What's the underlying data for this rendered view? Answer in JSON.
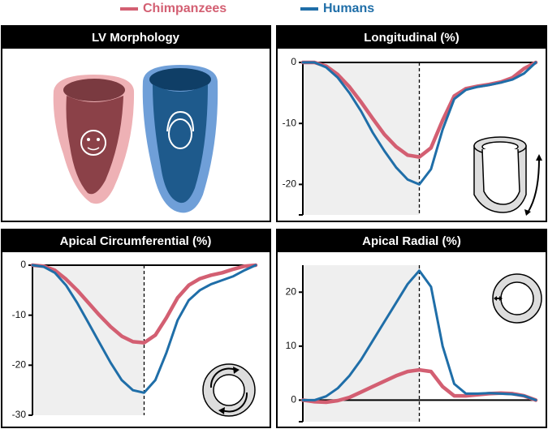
{
  "chart_data": [
    {
      "type": "image",
      "title": "LV Morphology"
    },
    {
      "type": "line",
      "title": "Longitudinal (%)",
      "x": [
        0,
        0.05,
        0.1,
        0.15,
        0.2,
        0.25,
        0.3,
        0.35,
        0.4,
        0.45,
        0.5,
        0.55,
        0.6,
        0.65,
        0.7,
        0.75,
        0.8,
        0.85,
        0.9,
        0.95,
        1
      ],
      "xlim": [
        0,
        1
      ],
      "ylim": [
        -25,
        0
      ],
      "yticks": [
        0,
        -10,
        -20
      ],
      "vline": 0.5,
      "series": [
        {
          "name": "Chimpanzees",
          "color": "#d35f72",
          "values": [
            0,
            0,
            -0.6,
            -2,
            -4,
            -6.5,
            -9.2,
            -11.8,
            -13.8,
            -15.2,
            -15.5,
            -14,
            -9.5,
            -5.5,
            -4.3,
            -3.9,
            -3.6,
            -3.2,
            -2.5,
            -1,
            0
          ]
        },
        {
          "name": "Humans",
          "color": "#1f6ea8",
          "values": [
            0,
            0,
            -0.8,
            -2.5,
            -5,
            -8,
            -11.5,
            -14.5,
            -17.2,
            -19.2,
            -20,
            -17.5,
            -11,
            -6,
            -4.5,
            -4,
            -3.7,
            -3.3,
            -2.8,
            -1.8,
            0
          ]
        }
      ]
    },
    {
      "type": "line",
      "title": "Apical Circumferential (%)",
      "x": [
        0,
        0.05,
        0.1,
        0.15,
        0.2,
        0.25,
        0.3,
        0.35,
        0.4,
        0.45,
        0.5,
        0.55,
        0.6,
        0.65,
        0.7,
        0.75,
        0.8,
        0.85,
        0.9,
        0.95,
        1
      ],
      "xlim": [
        0,
        1
      ],
      "ylim": [
        -30,
        0
      ],
      "yticks": [
        0,
        -10,
        -20,
        -30
      ],
      "vline": 0.5,
      "series": [
        {
          "name": "Chimpanzees",
          "color": "#d35f72",
          "values": [
            0,
            -0.2,
            -1,
            -2.8,
            -5,
            -7.5,
            -10,
            -12.3,
            -14.2,
            -15.3,
            -15.5,
            -14,
            -10.5,
            -6.5,
            -4,
            -2.7,
            -2,
            -1.5,
            -0.8,
            -0.2,
            0
          ]
        },
        {
          "name": "Humans",
          "color": "#1f6ea8",
          "values": [
            0,
            -0.3,
            -1.5,
            -4,
            -7.5,
            -11.5,
            -15.5,
            -19.5,
            -23,
            -25,
            -25.5,
            -23,
            -17.5,
            -11,
            -7,
            -5,
            -3.8,
            -3,
            -2.2,
            -1,
            0
          ]
        }
      ]
    },
    {
      "type": "line",
      "title": "Apical Radial (%)",
      "x": [
        0,
        0.05,
        0.1,
        0.15,
        0.2,
        0.25,
        0.3,
        0.35,
        0.4,
        0.45,
        0.5,
        0.55,
        0.6,
        0.65,
        0.7,
        0.75,
        0.8,
        0.85,
        0.9,
        0.95,
        1
      ],
      "xlim": [
        0,
        1
      ],
      "ylim": [
        -4,
        25
      ],
      "yticks": [
        0,
        10,
        20
      ],
      "vline": 0.5,
      "series": [
        {
          "name": "Chimpanzees",
          "color": "#d35f72",
          "values": [
            0,
            -0.3,
            -0.4,
            -0.1,
            0.5,
            1.5,
            2.5,
            3.5,
            4.5,
            5.3,
            5.6,
            5.3,
            2.5,
            0.8,
            0.8,
            1,
            1.2,
            1.3,
            1.2,
            0.8,
            0
          ]
        },
        {
          "name": "Humans",
          "color": "#1f6ea8",
          "values": [
            0,
            0,
            0.7,
            2.2,
            4.5,
            7.5,
            11,
            14.5,
            18,
            21.5,
            24,
            21,
            10,
            3,
            1.2,
            1.2,
            1.3,
            1.2,
            1.1,
            0.8,
            0
          ]
        }
      ]
    }
  ]
}
